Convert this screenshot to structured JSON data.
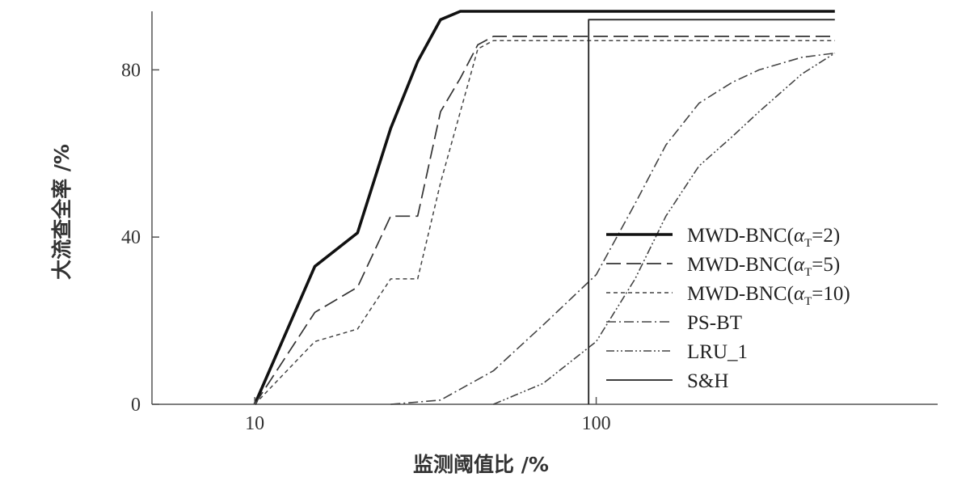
{
  "chart_data": {
    "type": "line",
    "xscale": "log",
    "xlim": [
      5,
      1000
    ],
    "ylim": [
      0,
      94
    ],
    "xticks": [
      10,
      100
    ],
    "yticks": [
      0,
      40,
      80
    ],
    "xlabel": "监测阈值比 /%",
    "ylabel": "大流查全率 /%",
    "grid": false,
    "legend": "right-middle",
    "series": [
      {
        "name": "MWD-BNC(αT=2)",
        "legend_prefix": "MWD-BNC(",
        "legend_greek": "α",
        "legend_sub": "T",
        "legend_suffix": "=2)",
        "style": "solid-thick",
        "x": [
          10,
          15,
          20,
          25,
          30,
          35,
          40,
          500
        ],
        "y": [
          0,
          33,
          41,
          66,
          82,
          92,
          94,
          94
        ]
      },
      {
        "name": "MWD-BNC(αT=5)",
        "legend_prefix": "MWD-BNC(",
        "legend_greek": "α",
        "legend_sub": "T",
        "legend_suffix": "=5)",
        "style": "long-dash",
        "x": [
          10,
          15,
          20,
          25,
          30,
          35,
          40,
          45,
          50,
          500
        ],
        "y": [
          0,
          22,
          28,
          45,
          45,
          70,
          78,
          86,
          88,
          88
        ]
      },
      {
        "name": "MWD-BNC(αT=10)",
        "legend_prefix": "MWD-BNC(",
        "legend_greek": "α",
        "legend_sub": "T",
        "legend_suffix": "=10)",
        "style": "short-dash",
        "x": [
          10,
          15,
          20,
          25,
          30,
          35,
          40,
          45,
          50,
          500
        ],
        "y": [
          0,
          15,
          18,
          30,
          30,
          53,
          70,
          85,
          87,
          87
        ]
      },
      {
        "name": "PS-BT",
        "style": "dash-dot",
        "x": [
          25,
          35,
          50,
          70,
          100,
          130,
          160,
          200,
          250,
          300,
          400,
          500
        ],
        "y": [
          0,
          1,
          8,
          19,
          31,
          48,
          62,
          72,
          77,
          80,
          83,
          84
        ]
      },
      {
        "name": "LRU_1",
        "style": "dash-dot-dot",
        "x": [
          50,
          70,
          100,
          130,
          160,
          200,
          250,
          300,
          400,
          500
        ],
        "y": [
          0,
          5,
          15,
          30,
          45,
          57,
          64,
          70,
          79,
          84
        ]
      },
      {
        "name": "S&H",
        "style": "solid-thin",
        "x": [
          95,
          95,
          500
        ],
        "y": [
          0,
          92,
          92
        ]
      }
    ]
  }
}
